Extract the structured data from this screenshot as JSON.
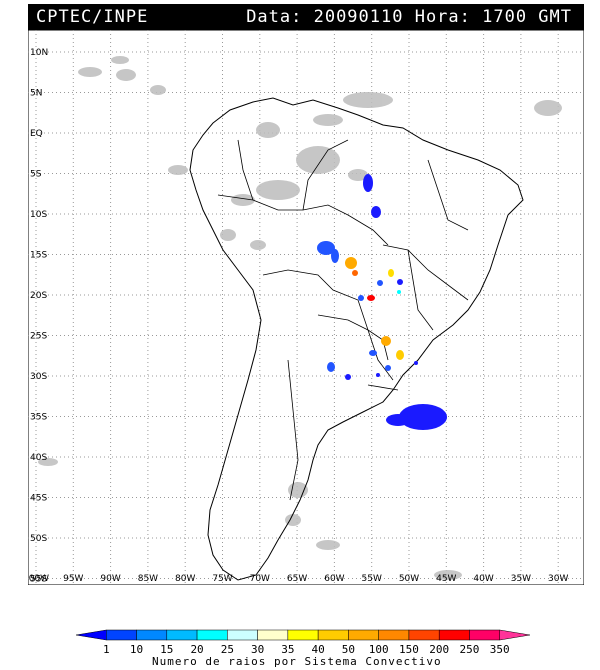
{
  "header": {
    "agency": "CPTEC/INPE",
    "datetime": "Data: 20090110 Hora: 1700 GMT"
  },
  "map": {
    "lat_labels": [
      "10N",
      "5N",
      "EQ",
      "5S",
      "10S",
      "15S",
      "20S",
      "25S",
      "30S",
      "35S",
      "40S",
      "45S",
      "50S",
      "55S"
    ],
    "lon_labels": [
      "100W",
      "95W",
      "90W",
      "85W",
      "80W",
      "75W",
      "70W",
      "65W",
      "60W",
      "55W",
      "50W",
      "45W",
      "40W",
      "35W",
      "30W"
    ],
    "land_outline_color": "#000000",
    "cloud_color": "#bdbdbd",
    "grid_style": "dotted"
  },
  "legend": {
    "title": "Numero de raios por Sistema Convectivo",
    "labels": [
      "1",
      "10",
      "15",
      "20",
      "25",
      "30",
      "35",
      "40",
      "50",
      "100",
      "150",
      "200",
      "250",
      "350"
    ],
    "colors": [
      "#0000ff",
      "#0044ff",
      "#0088ff",
      "#00bbff",
      "#00ffff",
      "#ccffff",
      "#ffffcc",
      "#ffff00",
      "#ffcc00",
      "#ffaa00",
      "#ff8800",
      "#ff4400",
      "#ff0000",
      "#ff0066",
      "#ff3399"
    ]
  }
}
